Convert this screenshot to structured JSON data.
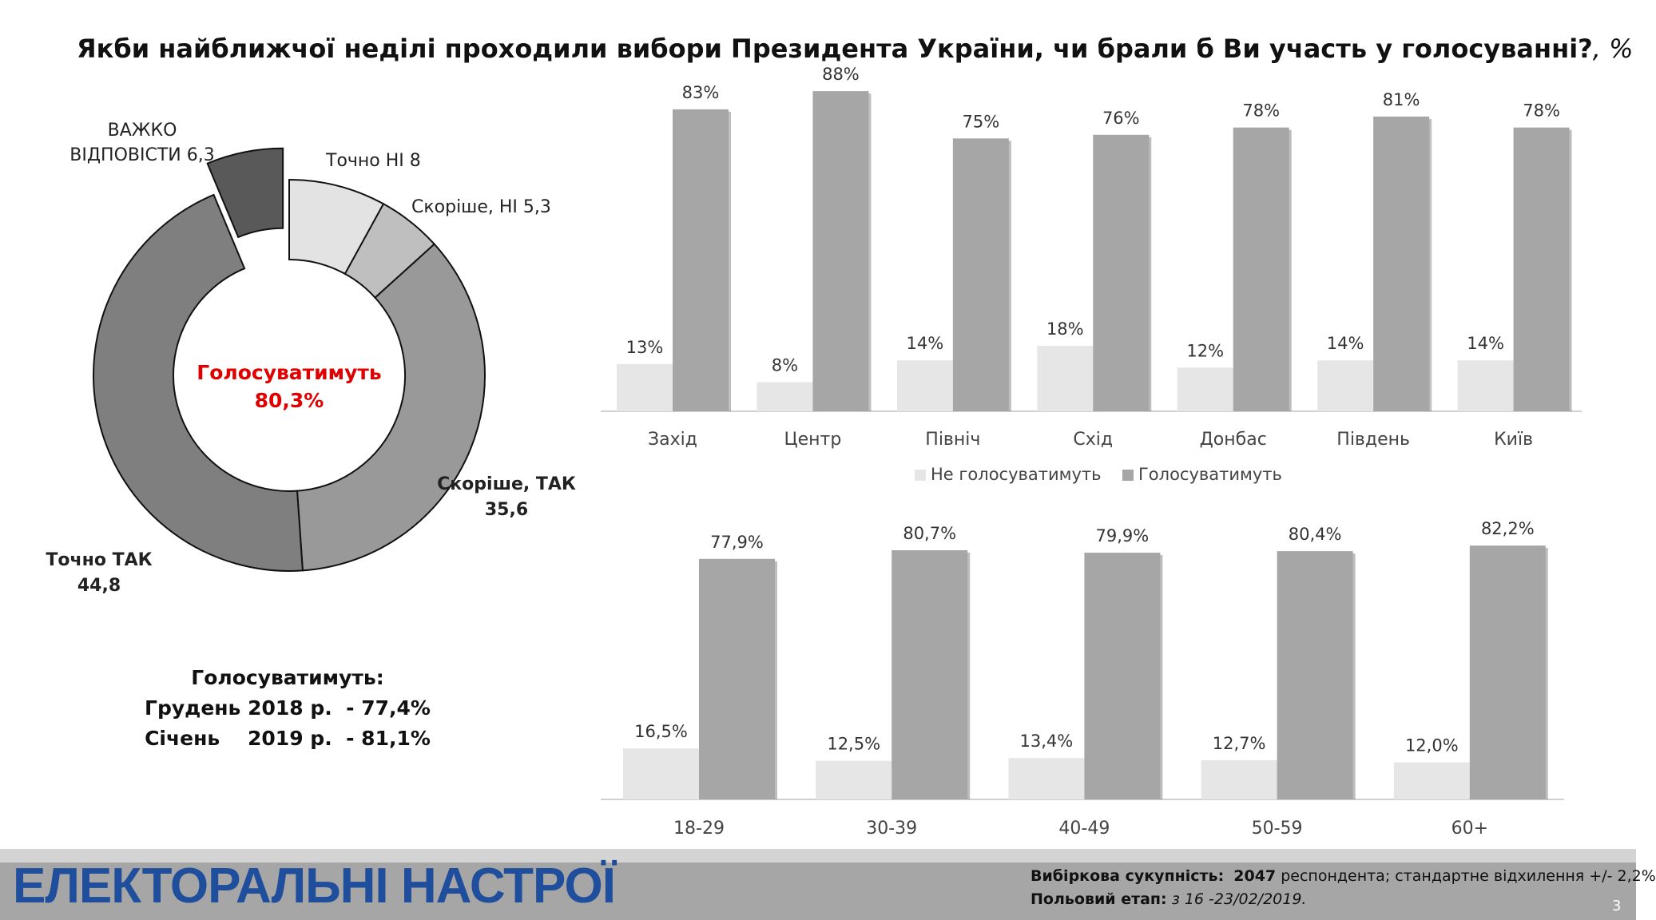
{
  "title": {
    "main": "Якби найближчої неділі проходили вибори Президента України, чи брали б Ви участь у голосуванні?",
    "suffix": ", %"
  },
  "donut": {
    "center_label": "Голосуватимуть",
    "center_value": "80,3%",
    "center_color": "#e00000",
    "segments": [
      {
        "label": "Точно НІ   8",
        "value": 8,
        "color": "#e3e3e3"
      },
      {
        "label": "Скоріше, НІ   5,3",
        "value": 5.3,
        "color": "#bfbfbf"
      },
      {
        "label": "Скоріше, ТАК",
        "sublabel": "35,6",
        "value": 35.6,
        "color": "#999999"
      },
      {
        "label": "Точно ТАК",
        "sublabel": "44,8",
        "value": 44.8,
        "color": "#7f7f7f"
      },
      {
        "label": "ВАЖКО",
        "sublabel": "ВІДПОВІСТИ 6,3",
        "value": 6.3,
        "color": "#595959",
        "exploded": true
      }
    ]
  },
  "summary": {
    "heading": "Голосуватимуть:",
    "rows": [
      "Грудень 2018 р.  - 77,4%",
      "Січень    2019 р.  - 81,1%"
    ]
  },
  "chart_data": [
    {
      "type": "bar",
      "title": "",
      "categories": [
        "Захід",
        "Центр",
        "Північ",
        "Схід",
        "Донбас",
        "Південь",
        "Київ"
      ],
      "series": [
        {
          "name": "Не голосуватимуть",
          "values": [
            13,
            8,
            14,
            18,
            12,
            14,
            14
          ],
          "labels": [
            "13%",
            "8%",
            "14%",
            "18%",
            "12%",
            "14%",
            "14%"
          ],
          "color": "#e6e6e6"
        },
        {
          "name": "Голосуватимуть",
          "values": [
            83,
            88,
            75,
            76,
            78,
            81,
            78
          ],
          "labels": [
            "83%",
            "88%",
            "75%",
            "76%",
            "78%",
            "81%",
            "78%"
          ],
          "color": "#a6a6a6"
        }
      ],
      "ylim": [
        0,
        90
      ],
      "grid": false,
      "legend": "bottom"
    },
    {
      "type": "bar",
      "title": "",
      "categories": [
        "18-29",
        "30-39",
        "40-49",
        "50-59",
        "60+"
      ],
      "series": [
        {
          "name": "Не голосуватимуть",
          "values": [
            16.5,
            12.5,
            13.4,
            12.7,
            12.0
          ],
          "labels": [
            "16,5%",
            "12,5%",
            "13,4%",
            "12,7%",
            "12,0%"
          ],
          "color": "#e6e6e6"
        },
        {
          "name": "Голосуватимуть",
          "values": [
            77.9,
            80.7,
            79.9,
            80.4,
            82.2
          ],
          "labels": [
            "77,9%",
            "80,7%",
            "79,9%",
            "80,4%",
            "82,2%"
          ],
          "color": "#a6a6a6"
        }
      ],
      "ylim": [
        0,
        90
      ],
      "grid": false,
      "legend": "none"
    }
  ],
  "footer": {
    "title": "ЕЛЕКТОРАЛЬНІ НАСТРОЇ",
    "sample_label": "Вибіркова сукупність:",
    "sample_value": "2047",
    "sample_rest": "респондента; стандартне  відхилення +/- 2,2%",
    "field_label": "Польовий етап:",
    "field_value": "з 16 -23/02/2019.",
    "page_number": "3"
  }
}
